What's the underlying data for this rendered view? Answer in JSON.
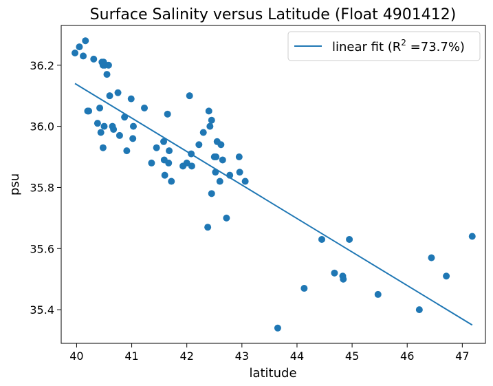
{
  "chart_data": {
    "type": "scatter",
    "title": "Surface Salinity versus Latitude (Float 4901412)",
    "xlabel": "latitude",
    "ylabel": "psu",
    "xlim": [
      39.72,
      47.42
    ],
    "ylim": [
      35.29,
      36.33
    ],
    "xticks": [
      40,
      41,
      42,
      43,
      44,
      45,
      46,
      47
    ],
    "yticks": [
      35.4,
      35.6,
      35.8,
      36.0,
      36.2
    ],
    "grid": false,
    "legend_position": "top-right",
    "colors": {
      "series": "#1f77b4"
    },
    "series": [
      {
        "type": "scatter",
        "x": [
          39.97,
          40.05,
          40.12,
          40.16,
          40.31,
          40.46,
          40.48,
          40.51,
          40.55,
          40.58,
          40.2,
          40.42,
          40.6,
          40.75,
          40.99,
          40.22,
          40.44,
          40.38,
          40.48,
          40.5,
          40.65,
          40.67,
          40.78,
          40.87,
          40.91,
          41.02,
          41.03,
          40.49,
          41.23,
          41.36,
          41.45,
          41.58,
          41.6,
          41.65,
          41.68,
          41.67,
          41.72,
          41.59,
          41.93,
          42.0,
          42.08,
          42.09,
          42.05,
          42.22,
          42.3,
          42.4,
          42.42,
          42.45,
          42.5,
          42.53,
          42.55,
          42.6,
          42.62,
          42.65,
          42.52,
          42.78,
          42.95,
          42.96,
          43.06,
          42.38,
          42.45,
          42.72,
          43.65,
          44.13,
          44.45,
          44.68,
          44.83,
          44.84,
          44.95,
          45.47,
          46.22,
          46.44,
          46.71,
          47.18
        ],
        "y": [
          36.24,
          36.26,
          36.23,
          36.28,
          36.22,
          36.21,
          36.2,
          36.2,
          36.17,
          36.2,
          36.05,
          36.06,
          36.1,
          36.11,
          36.09,
          36.05,
          35.98,
          36.01,
          35.93,
          36.0,
          36.0,
          35.99,
          35.97,
          36.03,
          35.92,
          35.96,
          36.0,
          36.21,
          36.06,
          35.88,
          35.93,
          35.95,
          35.84,
          36.04,
          35.92,
          35.88,
          35.82,
          35.89,
          35.87,
          35.88,
          35.91,
          35.87,
          36.1,
          35.94,
          35.98,
          36.05,
          36.0,
          36.02,
          35.9,
          35.9,
          35.95,
          35.82,
          35.94,
          35.89,
          35.85,
          35.84,
          35.9,
          35.85,
          35.82,
          35.67,
          35.78,
          35.7,
          35.34,
          35.47,
          35.63,
          35.52,
          35.51,
          35.5,
          35.63,
          35.45,
          35.4,
          35.57,
          35.51,
          35.64
        ]
      },
      {
        "type": "line",
        "name": "linear fit (R",
        "x": [
          39.97,
          47.18
        ],
        "y": [
          36.14,
          35.35
        ]
      }
    ],
    "legend": {
      "label": "linear fit (R",
      "superscript": "2",
      "label_end": " =73.7%)"
    }
  }
}
